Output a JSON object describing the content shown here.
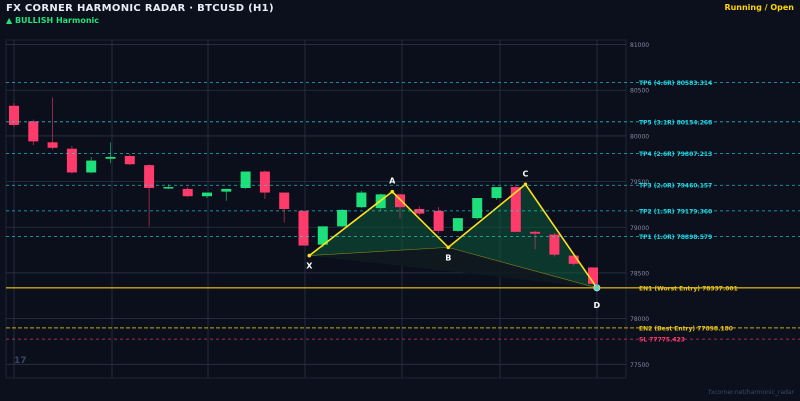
{
  "header": {
    "title": "FX CORNER HARMONIC RADAR  ·  BTCUSD (H1)",
    "status": "Running / Open",
    "pattern": "▲ BULLISH  Harmonic"
  },
  "footer": {
    "watermark": "fxcorner.net/harmonic_radar"
  },
  "colors": {
    "background": "#0b101c",
    "bull_candle": "#1ee07a",
    "bear_candle": "#ff3b6b",
    "pattern_line": "#ffe21a",
    "tp_line": "#1ed8e6",
    "entry_line": "#e6c21a",
    "sl_line": "#ff3b6b",
    "pattern_fill": "#0f5a3c"
  },
  "chart_data": {
    "type": "candlestick",
    "symbol": "BTCUSD",
    "timeframe": "H1",
    "ylim": [
      77350,
      81050
    ],
    "yticks": [
      77500,
      78000,
      78500,
      79000,
      79500,
      80000,
      80500,
      81000
    ],
    "candles": [
      {
        "o": 80330,
        "h": 80360,
        "c": 80120,
        "l": 80100
      },
      {
        "o": 80160,
        "h": 80180,
        "c": 79940,
        "l": 79900
      },
      {
        "o": 79930,
        "h": 80420,
        "c": 79870,
        "l": 79850
      },
      {
        "o": 79860,
        "h": 79890,
        "c": 79600,
        "l": 79590
      },
      {
        "o": 79600,
        "h": 79770,
        "c": 79730,
        "l": 79590
      },
      {
        "o": 79750,
        "h": 79930,
        "c": 79770,
        "l": 79700
      },
      {
        "o": 79780,
        "h": 79800,
        "c": 79690,
        "l": 79680
      },
      {
        "o": 79680,
        "h": 79690,
        "c": 79430,
        "l": 79010
      },
      {
        "o": 79430,
        "h": 79470,
        "c": 79440,
        "l": 79420
      },
      {
        "o": 79420,
        "h": 79440,
        "c": 79340,
        "l": 79330
      },
      {
        "o": 79340,
        "h": 79370,
        "c": 79380,
        "l": 79320
      },
      {
        "o": 79390,
        "h": 79420,
        "c": 79420,
        "l": 79290
      },
      {
        "o": 79430,
        "h": 79600,
        "c": 79610,
        "l": 79420
      },
      {
        "o": 79610,
        "h": 79620,
        "c": 79380,
        "l": 79310
      },
      {
        "o": 79380,
        "h": 79380,
        "c": 79200,
        "l": 79050
      },
      {
        "o": 79180,
        "h": 79180,
        "c": 78800,
        "l": 78810
      },
      {
        "o": 78810,
        "h": 79010,
        "c": 79010,
        "l": 78780
      },
      {
        "o": 79010,
        "h": 79200,
        "c": 79190,
        "l": 79000
      },
      {
        "o": 79220,
        "h": 79400,
        "c": 79380,
        "l": 79210
      },
      {
        "o": 79210,
        "h": 79370,
        "c": 79360,
        "l": 79180
      },
      {
        "o": 79360,
        "h": 79370,
        "c": 79220,
        "l": 79100
      },
      {
        "o": 79200,
        "h": 79230,
        "c": 79150,
        "l": 79130
      },
      {
        "o": 79180,
        "h": 79220,
        "c": 78960,
        "l": 78930
      },
      {
        "o": 78960,
        "h": 79100,
        "c": 79100,
        "l": 78950
      },
      {
        "o": 79100,
        "h": 79320,
        "c": 79320,
        "l": 79080
      },
      {
        "o": 79320,
        "h": 79440,
        "c": 79440,
        "l": 79300
      },
      {
        "o": 79440,
        "h": 79470,
        "c": 78950,
        "l": 78950
      },
      {
        "o": 78950,
        "h": 78960,
        "c": 78930,
        "l": 78760
      },
      {
        "o": 78920,
        "h": 78940,
        "c": 78700,
        "l": 78680
      },
      {
        "o": 78690,
        "h": 78700,
        "c": 78600,
        "l": 78580
      },
      {
        "o": 78560,
        "h": 78560,
        "c": 78380,
        "l": 78370
      }
    ],
    "pattern_points": [
      {
        "label": "X",
        "index": 15.3,
        "price": 78690
      },
      {
        "label": "A",
        "index": 19.6,
        "price": 79390
      },
      {
        "label": "B",
        "index": 22.5,
        "price": 78780
      },
      {
        "label": "C",
        "index": 26.5,
        "price": 79470
      },
      {
        "label": "D",
        "index": 30.2,
        "price": 78337
      }
    ],
    "levels": [
      {
        "label": "TP6 (4.6R)  80583.314",
        "price": 80583.314,
        "kind": "tp"
      },
      {
        "label": "TP5 (3.1R)  80154.268",
        "price": 80154.268,
        "kind": "tp"
      },
      {
        "label": "TP4 (2.6R)  79807.213",
        "price": 79807.213,
        "kind": "tp"
      },
      {
        "label": "TP3 (2.0R)  79460.157",
        "price": 79460.157,
        "kind": "tp"
      },
      {
        "label": "TP2 (1.5R)  79179.360",
        "price": 79179.36,
        "kind": "tp"
      },
      {
        "label": "TP1 (1.0R)  78898.579",
        "price": 78898.579,
        "kind": "tp"
      },
      {
        "label": "EN1 (Worst Entry)  78337.001",
        "price": 78337.001,
        "kind": "entry"
      },
      {
        "label": "EN2 (Best Entry)  77898.180",
        "price": 77898.18,
        "kind": "entry2"
      },
      {
        "label": "SL  77775.423",
        "price": 77775.423,
        "kind": "sl"
      }
    ],
    "corner_badge": "17"
  }
}
